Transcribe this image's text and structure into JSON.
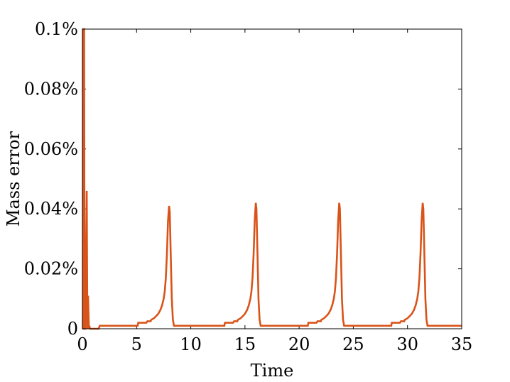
{
  "chart_data": {
    "type": "line",
    "xlabel": "Time",
    "ylabel": "Mass error",
    "xlim": [
      0,
      35
    ],
    "ylim": [
      0,
      0.1
    ],
    "x_ticks": [
      {
        "value": 0,
        "label": "0"
      },
      {
        "value": 5,
        "label": "5"
      },
      {
        "value": 10,
        "label": "10"
      },
      {
        "value": 15,
        "label": "15"
      },
      {
        "value": 20,
        "label": "20"
      },
      {
        "value": 25,
        "label": "25"
      },
      {
        "value": 30,
        "label": "30"
      },
      {
        "value": 35,
        "label": "35"
      }
    ],
    "y_ticks": [
      {
        "value": 0,
        "label": "0"
      },
      {
        "value": 0.02,
        "label": "0.02%"
      },
      {
        "value": 0.04,
        "label": "0.04%"
      },
      {
        "value": 0.06,
        "label": "0.06%"
      },
      {
        "value": 0.08,
        "label": "0.08%"
      },
      {
        "value": 0.1,
        "label": "0.1%"
      }
    ],
    "grid": false,
    "line_color": "#d95319",
    "series": [
      {
        "points": [
          [
            0.0,
            0.0
          ],
          [
            0.05,
            0.0
          ],
          [
            0.1,
            0.1
          ],
          [
            0.16,
            0.1
          ],
          [
            0.2,
            0.0
          ],
          [
            0.28,
            0.0
          ],
          [
            0.4,
            0.046
          ],
          [
            0.46,
            0.0
          ],
          [
            0.52,
            0.011
          ],
          [
            0.6,
            0.0
          ],
          [
            0.64,
            0.001
          ],
          [
            0.7,
            0.0
          ],
          [
            1.5,
            0.0
          ],
          [
            1.6,
            0.001
          ],
          [
            5.1,
            0.001
          ],
          [
            5.15,
            0.002
          ],
          [
            5.9,
            0.002
          ],
          [
            6.0,
            0.0025
          ],
          [
            6.3,
            0.0025
          ],
          [
            6.35,
            0.003
          ],
          [
            6.6,
            0.0035
          ],
          [
            6.8,
            0.0042
          ],
          [
            7.0,
            0.005
          ],
          [
            7.2,
            0.0063
          ],
          [
            7.35,
            0.0078
          ],
          [
            7.5,
            0.01
          ],
          [
            7.6,
            0.0125
          ],
          [
            7.7,
            0.017
          ],
          [
            7.8,
            0.025
          ],
          [
            7.9,
            0.036
          ],
          [
            8.0,
            0.041
          ],
          [
            8.06,
            0.039
          ],
          [
            8.15,
            0.025
          ],
          [
            8.25,
            0.01
          ],
          [
            8.35,
            0.003
          ],
          [
            8.45,
            0.001
          ],
          [
            13.1,
            0.001
          ],
          [
            13.15,
            0.002
          ],
          [
            13.9,
            0.002
          ],
          [
            14.0,
            0.0025
          ],
          [
            14.3,
            0.0025
          ],
          [
            14.35,
            0.003
          ],
          [
            14.6,
            0.0035
          ],
          [
            14.8,
            0.0042
          ],
          [
            15.0,
            0.005
          ],
          [
            15.2,
            0.0063
          ],
          [
            15.35,
            0.0078
          ],
          [
            15.5,
            0.01
          ],
          [
            15.6,
            0.0125
          ],
          [
            15.7,
            0.017
          ],
          [
            15.8,
            0.025
          ],
          [
            15.9,
            0.036
          ],
          [
            16.0,
            0.042
          ],
          [
            16.06,
            0.04
          ],
          [
            16.15,
            0.026
          ],
          [
            16.25,
            0.01
          ],
          [
            16.35,
            0.003
          ],
          [
            16.45,
            0.001
          ],
          [
            20.8,
            0.001
          ],
          [
            20.85,
            0.002
          ],
          [
            21.6,
            0.002
          ],
          [
            21.7,
            0.0025
          ],
          [
            22.0,
            0.0025
          ],
          [
            22.05,
            0.003
          ],
          [
            22.3,
            0.0035
          ],
          [
            22.5,
            0.0042
          ],
          [
            22.7,
            0.005
          ],
          [
            22.9,
            0.0063
          ],
          [
            23.05,
            0.0078
          ],
          [
            23.2,
            0.01
          ],
          [
            23.3,
            0.0125
          ],
          [
            23.4,
            0.017
          ],
          [
            23.5,
            0.025
          ],
          [
            23.6,
            0.036
          ],
          [
            23.7,
            0.042
          ],
          [
            23.76,
            0.04
          ],
          [
            23.85,
            0.026
          ],
          [
            23.95,
            0.01
          ],
          [
            24.05,
            0.003
          ],
          [
            24.15,
            0.001
          ],
          [
            28.5,
            0.001
          ],
          [
            28.55,
            0.002
          ],
          [
            29.3,
            0.002
          ],
          [
            29.4,
            0.0025
          ],
          [
            29.7,
            0.0025
          ],
          [
            29.75,
            0.003
          ],
          [
            30.0,
            0.0035
          ],
          [
            30.2,
            0.0042
          ],
          [
            30.4,
            0.005
          ],
          [
            30.6,
            0.0063
          ],
          [
            30.75,
            0.0078
          ],
          [
            30.9,
            0.01
          ],
          [
            31.0,
            0.0125
          ],
          [
            31.1,
            0.017
          ],
          [
            31.2,
            0.025
          ],
          [
            31.3,
            0.036
          ],
          [
            31.4,
            0.042
          ],
          [
            31.46,
            0.04
          ],
          [
            31.55,
            0.026
          ],
          [
            31.65,
            0.01
          ],
          [
            31.75,
            0.003
          ],
          [
            31.85,
            0.001
          ],
          [
            35.0,
            0.001
          ]
        ]
      }
    ]
  }
}
